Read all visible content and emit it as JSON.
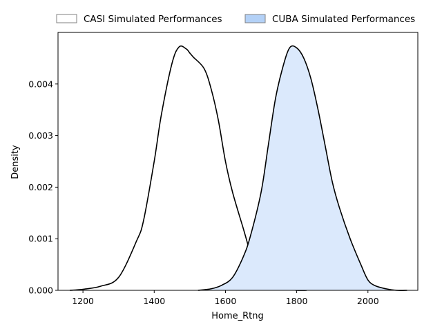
{
  "chart_data": {
    "type": "area",
    "xlabel": "Home_Rtng",
    "ylabel": "Density",
    "xlim": [
      1130,
      2140
    ],
    "ylim": [
      0,
      0.005
    ],
    "x_ticks": [
      1200,
      1400,
      1600,
      1800,
      2000
    ],
    "y_ticks": [
      0.0,
      0.001,
      0.002,
      0.003,
      0.004
    ],
    "grid": false,
    "legend_position": "top",
    "series": [
      {
        "name": "CASI Simulated Performances",
        "fill": "none",
        "fill_color": "#ffffff",
        "edge_color": "#000000",
        "x": [
          1163,
          1200,
          1250,
          1300,
          1350,
          1370,
          1400,
          1420,
          1450,
          1470,
          1490,
          1500,
          1510,
          1540,
          1560,
          1580,
          1600,
          1620,
          1650,
          1680,
          1700,
          1720,
          1740,
          1770,
          1800,
          1828
        ],
        "y": [
          0.0,
          2e-05,
          8e-05,
          0.00025,
          0.00095,
          0.00135,
          0.0025,
          0.0034,
          0.0044,
          0.00472,
          0.00468,
          0.0046,
          0.00452,
          0.0043,
          0.0039,
          0.0033,
          0.0025,
          0.0019,
          0.0012,
          0.0005,
          0.00025,
          0.00012,
          5e-05,
          2e-05,
          0.0,
          0.0
        ]
      },
      {
        "name": "CUBA Simulated Performances",
        "fill": "solid",
        "fill_color": "#dbe9fc",
        "edge_color": "#000000",
        "x": [
          1523,
          1560,
          1590,
          1620,
          1650,
          1670,
          1700,
          1720,
          1740,
          1760,
          1780,
          1800,
          1820,
          1840,
          1860,
          1880,
          1900,
          1920,
          1950,
          1980,
          2000,
          2020,
          2050,
          2080,
          2110
        ],
        "y": [
          0.0,
          3e-05,
          0.0001,
          0.00025,
          0.00065,
          0.00105,
          0.0019,
          0.0028,
          0.0037,
          0.0043,
          0.0047,
          0.0047,
          0.0045,
          0.0041,
          0.0035,
          0.0028,
          0.0021,
          0.0016,
          0.001,
          0.0005,
          0.0002,
          9e-05,
          3e-05,
          0.0,
          0.0
        ]
      }
    ]
  },
  "legend_swatches": {
    "casi": {
      "fill": "#ffffff",
      "stroke": "#808080"
    },
    "cuba": {
      "fill": "#b3d1f7",
      "stroke": "#808080"
    }
  }
}
